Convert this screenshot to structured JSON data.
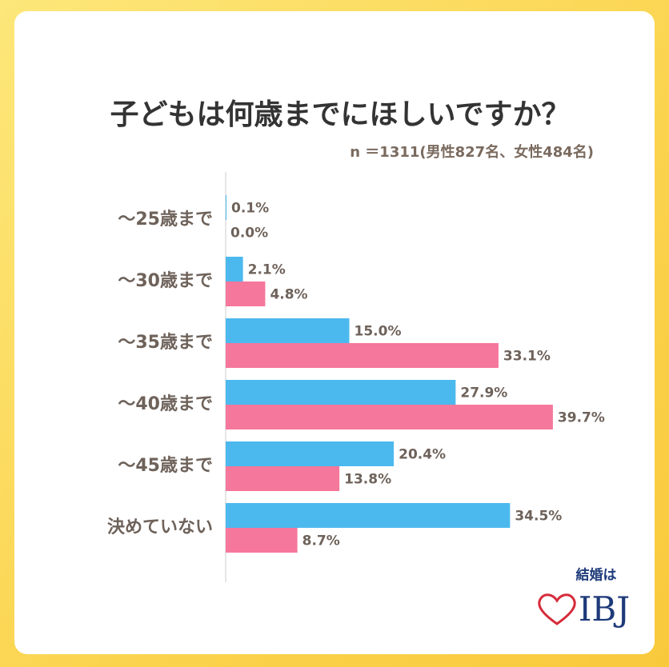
{
  "chart_data": {
    "type": "bar",
    "orientation": "horizontal",
    "title": "子どもは何歳までにほしいですか？",
    "subtitle": "n ＝1311(男性827名、女性484名)",
    "categories": [
      "～25歳まで",
      "～30歳まで",
      "～35歳まで",
      "～40歳まで",
      "～45歳まで",
      "決めていない"
    ],
    "series": [
      {
        "color": "#4cb9ee",
        "values": [
          0.1,
          2.1,
          15.0,
          27.9,
          20.4,
          34.5
        ],
        "value_labels": [
          "0.1%",
          "2.1%",
          "15.0%",
          "27.9%",
          "20.4%",
          "34.5%"
        ]
      },
      {
        "color": "#f5779b",
        "values": [
          0.0,
          4.8,
          33.1,
          39.7,
          13.8,
          8.7
        ],
        "value_labels": [
          "0.0%",
          "4.8%",
          "33.1%",
          "39.7%",
          "13.8%",
          "8.7%"
        ]
      }
    ]
  },
  "logo": {
    "tagline": "結婚は",
    "name": "IBJ"
  }
}
